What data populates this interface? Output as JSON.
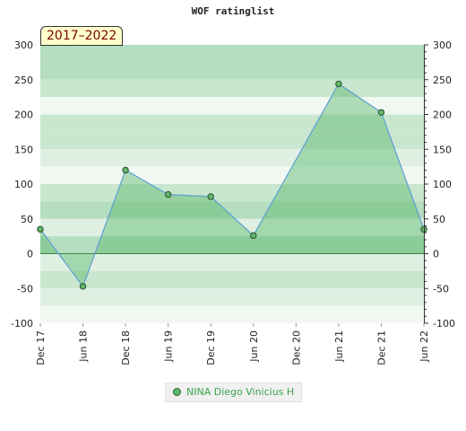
{
  "chart_data": {
    "type": "area",
    "title": "WOF ratinglist",
    "badge": "2017–2022",
    "xlabel": "",
    "ylabel": "",
    "ylim": [
      -100,
      300
    ],
    "yticks": [
      -100,
      -50,
      0,
      50,
      100,
      150,
      200,
      250,
      300
    ],
    "xtick_labels": [
      "Dec 17",
      "Jun 18",
      "Dec 18",
      "Jun 19",
      "Dec 19",
      "Jun 20",
      "Dec 20",
      "Jun 21",
      "Dec 21",
      "Jun 22"
    ],
    "series": [
      {
        "name": "NINA Diego Vinicius H",
        "x": [
          "Dec 17",
          "Jun 18",
          "Dec 18",
          "Jun 19",
          "Dec 19",
          "Jun 20",
          "Jun 21",
          "Dec 21",
          "Jun 22"
        ],
        "values": [
          35,
          -47,
          120,
          85,
          82,
          26,
          244,
          203,
          35
        ]
      }
    ],
    "legend_position": "bottom-center",
    "grid": "horizontal-bands"
  },
  "colors": {
    "band_dark": "#b5ddc0",
    "band_mid": "#c9e6cf",
    "band_light": "#dff0e3",
    "band_pale": "#f1f8f2",
    "area_fill": "#5cb86a",
    "line": "#5b9fd4",
    "point_fill": "#5fb86a",
    "legend_text": "#3aa44a"
  }
}
